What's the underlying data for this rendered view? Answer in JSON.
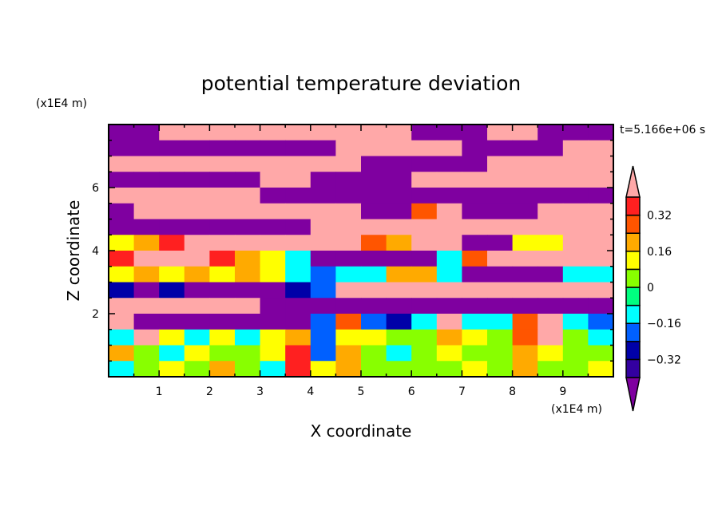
{
  "chart_data": {
    "type": "heatmap",
    "title": "potential temperature deviation",
    "xlabel": "X coordinate",
    "ylabel": "Z coordinate",
    "x_unit_label": "(x1E4 m)",
    "y_unit_label": "(x1E4 m)",
    "time_label": "t=5.166e+06 s",
    "xlim": [
      0,
      10
    ],
    "ylim": [
      0,
      8
    ],
    "x_ticks": [
      1,
      2,
      3,
      4,
      5,
      6,
      7,
      8,
      9
    ],
    "y_ticks": [
      2,
      4,
      6
    ],
    "grid_dx": 0.5,
    "grid_dz": 0.5,
    "rows_top_to_bottom": [
      [
        -0.5,
        -0.5,
        0.5,
        0.5,
        0.5,
        0.5,
        0.5,
        0.5,
        0.5,
        0.5,
        0.5,
        0.5,
        -0.5,
        -0.5,
        -0.5,
        0.5,
        0.5,
        -0.5,
        -0.5,
        -0.5
      ],
      [
        -0.5,
        -0.5,
        -0.5,
        -0.5,
        -0.5,
        -0.5,
        -0.5,
        -0.5,
        -0.5,
        0.5,
        0.5,
        0.5,
        0.5,
        0.5,
        -0.5,
        -0.5,
        -0.5,
        -0.5,
        0.5,
        0.5
      ],
      [
        0.5,
        0.5,
        0.5,
        0.5,
        0.5,
        0.5,
        0.5,
        0.5,
        0.5,
        0.5,
        -0.5,
        -0.5,
        -0.5,
        -0.5,
        -0.5,
        0.5,
        0.5,
        0.5,
        0.5,
        0.5
      ],
      [
        -0.5,
        -0.5,
        -0.5,
        -0.5,
        -0.5,
        -0.5,
        0.5,
        0.5,
        -0.5,
        -0.5,
        -0.5,
        -0.5,
        0.5,
        0.5,
        0.5,
        0.5,
        0.5,
        0.5,
        0.5,
        0.5
      ],
      [
        0.5,
        0.5,
        0.5,
        0.5,
        0.5,
        0.5,
        -0.5,
        -0.5,
        -0.5,
        -0.5,
        -0.5,
        -0.5,
        -0.5,
        -0.5,
        -0.5,
        -0.5,
        -0.5,
        -0.5,
        -0.5,
        -0.5
      ],
      [
        -0.5,
        0.5,
        0.5,
        0.5,
        0.5,
        0.5,
        0.5,
        0.5,
        0.5,
        0.5,
        -0.5,
        -0.5,
        0.3,
        0.5,
        -0.5,
        -0.5,
        -0.5,
        0.5,
        0.5,
        0.5
      ],
      [
        -0.5,
        -0.5,
        -0.5,
        -0.5,
        -0.5,
        -0.5,
        -0.5,
        -0.5,
        0.5,
        0.5,
        0.5,
        0.5,
        0.5,
        0.5,
        0.5,
        0.5,
        0.5,
        0.5,
        0.5,
        0.5
      ],
      [
        0.1,
        0.2,
        0.35,
        0.5,
        0.5,
        0.5,
        0.5,
        0.5,
        0.5,
        0.5,
        0.3,
        0.2,
        0.5,
        0.5,
        -0.5,
        -0.5,
        0.1,
        0.1,
        0.5,
        0.5
      ],
      [
        0.35,
        0.5,
        0.5,
        0.5,
        0.35,
        0.2,
        0.1,
        -0.1,
        -0.5,
        -0.5,
        -0.5,
        -0.5,
        -0.5,
        -0.1,
        0.3,
        0.5,
        0.5,
        0.5,
        0.5,
        0.5
      ],
      [
        0.1,
        0.2,
        0.1,
        0.2,
        0.1,
        0.2,
        0.1,
        -0.1,
        -0.2,
        -0.1,
        -0.1,
        0.2,
        0.2,
        -0.1,
        -0.5,
        -0.5,
        -0.5,
        -0.5,
        -0.1,
        -0.1
      ],
      [
        -0.3,
        -0.5,
        -0.3,
        -0.5,
        -0.5,
        -0.5,
        -0.5,
        -0.3,
        -0.2,
        0.5,
        0.5,
        0.5,
        0.5,
        0.5,
        0.5,
        0.5,
        0.5,
        0.5,
        0.5,
        0.5
      ],
      [
        0.5,
        0.5,
        0.5,
        0.5,
        0.5,
        0.5,
        -0.5,
        -0.5,
        -0.5,
        -0.5,
        -0.5,
        -0.5,
        -0.5,
        -0.5,
        -0.5,
        -0.5,
        -0.5,
        -0.5,
        -0.5,
        -0.5
      ],
      [
        0.5,
        -0.5,
        -0.5,
        -0.5,
        -0.5,
        -0.5,
        -0.5,
        -0.5,
        -0.2,
        0.3,
        -0.2,
        -0.3,
        -0.1,
        0.5,
        -0.1,
        -0.1,
        0.3,
        0.5,
        -0.1,
        -0.2
      ],
      [
        -0.1,
        0.5,
        0.1,
        -0.1,
        0.15,
        -0.1,
        0.1,
        0.2,
        -0.2,
        0.1,
        0.1,
        0.05,
        0.05,
        0.2,
        0.1,
        0.05,
        0.3,
        0.5,
        0.05,
        -0.1
      ],
      [
        0.2,
        0.05,
        -0.1,
        0.1,
        0.05,
        0.0,
        0.1,
        0.35,
        -0.2,
        0.2,
        0.0,
        -0.1,
        0.05,
        0.1,
        0.05,
        0.0,
        0.2,
        0.1,
        0.05,
        0.0
      ],
      [
        -0.1,
        0.05,
        0.1,
        0.05,
        0.2,
        0.0,
        -0.1,
        0.35,
        0.1,
        0.2,
        0.05,
        0.0,
        0.0,
        0.05,
        0.1,
        0.0,
        0.2,
        0.05,
        0.0,
        0.1
      ]
    ],
    "colorbar": {
      "levels": [
        -0.4,
        -0.32,
        -0.24,
        -0.16,
        -0.08,
        0,
        0.08,
        0.16,
        0.24,
        0.32,
        0.4
      ],
      "colors_low_to_high": [
        "#3300a0",
        "#0000a8",
        "#0060ff",
        "#00ffff",
        "#00ff80",
        "#88ff00",
        "#ffff00",
        "#ffaa00",
        "#ff5500",
        "#ff2020"
      ],
      "under_color": "#7f00a0",
      "over_color": "#ffa8a8",
      "tick_labels": [
        {
          "value": 0.32,
          "label": "0.32"
        },
        {
          "value": 0.16,
          "label": "0.16"
        },
        {
          "value": 0,
          "label": "0"
        },
        {
          "value": -0.16,
          "label": "−0.16"
        },
        {
          "value": -0.32,
          "label": "−0.32"
        }
      ]
    }
  }
}
